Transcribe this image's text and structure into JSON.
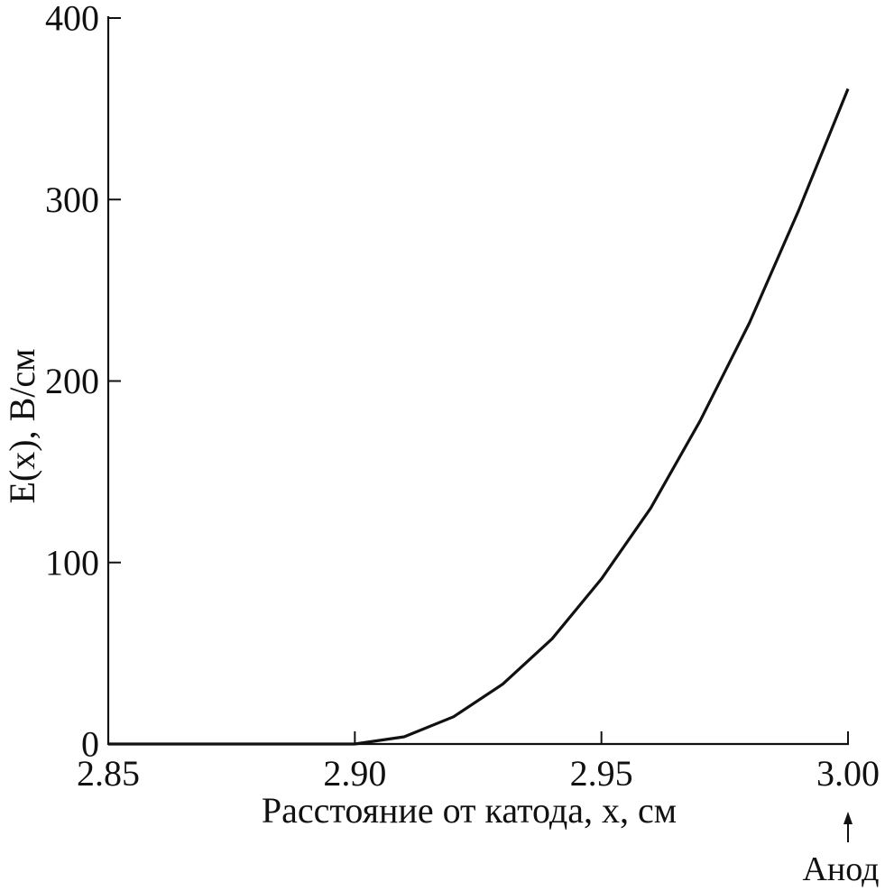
{
  "chart_data": {
    "type": "line",
    "title": "",
    "xlabel": "Расстояние от катода, x, см",
    "ylabel": "E(x), В/см",
    "xlim": [
      2.85,
      3.0
    ],
    "ylim": [
      0,
      400
    ],
    "x_ticks": [
      2.85,
      2.9,
      2.95,
      3.0
    ],
    "x_tick_labels": [
      "2.85",
      "2.90",
      "2.95",
      "3.00"
    ],
    "y_ticks": [
      0,
      100,
      200,
      300,
      400
    ],
    "y_tick_labels": [
      "0",
      "100",
      "200",
      "300",
      "400"
    ],
    "grid": false,
    "legend": "none",
    "series": [
      {
        "x": [
          2.85,
          2.86,
          2.87,
          2.88,
          2.89,
          2.9,
          2.91,
          2.92,
          2.93,
          2.94,
          2.95,
          2.96,
          2.97,
          2.98,
          2.99,
          3.0
        ],
        "y": [
          0,
          0,
          0,
          0,
          0,
          0,
          4,
          15,
          33,
          58,
          91,
          130,
          178,
          232,
          294,
          361
        ],
        "color": "#111111"
      }
    ],
    "annotations": [
      {
        "text": "Анод",
        "x": 3.0,
        "arrow": "up"
      }
    ]
  }
}
